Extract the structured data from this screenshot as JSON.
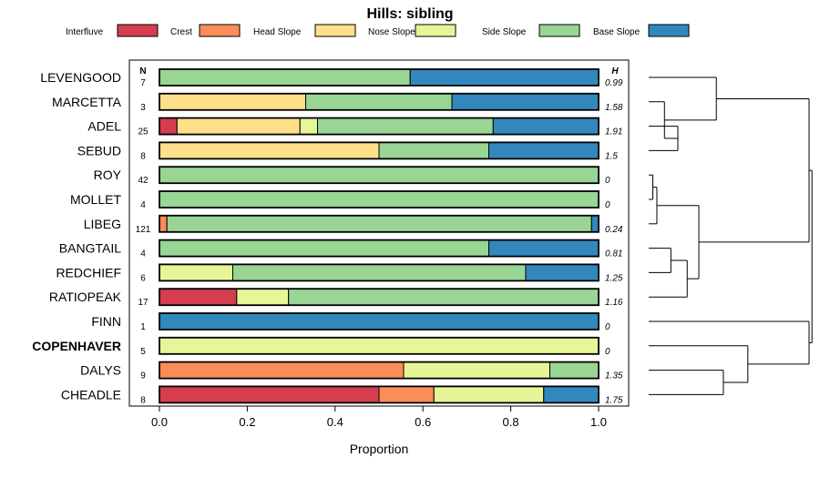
{
  "chart_data": {
    "type": "bar",
    "orientation": "horizontal",
    "stacked": true,
    "title": "Hills: sibling",
    "xlabel": "Proportion",
    "ylabel": "",
    "xlim": [
      0,
      1
    ],
    "x_ticks": [
      "0.0",
      "0.2",
      "0.4",
      "0.6",
      "0.8",
      "1.0"
    ],
    "n_header": "N",
    "h_header": "H",
    "legend_position": "top",
    "legend": [
      {
        "name": "Interfluve",
        "color": "#d53e4f"
      },
      {
        "name": "Crest",
        "color": "#fc8d59"
      },
      {
        "name": "Head Slope",
        "color": "#fee08b"
      },
      {
        "name": "Nose Slope",
        "color": "#e6f598"
      },
      {
        "name": "Side Slope",
        "color": "#99d594"
      },
      {
        "name": "Base Slope",
        "color": "#3288bd"
      }
    ],
    "highlighted_category": "COPENHAVER",
    "categories": [
      "LEVENGOOD",
      "MARCETTA",
      "ADEL",
      "SEBUD",
      "ROY",
      "MOLLET",
      "LIBEG",
      "BANGTAIL",
      "REDCHIEF",
      "RATIOPEAK",
      "FINN",
      "COPENHAVER",
      "DALYS",
      "CHEADLE"
    ],
    "n_values": [
      "7",
      "3",
      "25",
      "8",
      "42",
      "4",
      "121",
      "4",
      "6",
      "17",
      "1",
      "5",
      "9",
      "8"
    ],
    "h_values": [
      "0.99",
      "1.58",
      "1.91",
      "1.5",
      "0",
      "0",
      "0.24",
      "0.81",
      "1.25",
      "1.16",
      "0",
      "0",
      "1.35",
      "1.75"
    ],
    "series": [
      {
        "name": "Interfluve",
        "values": [
          0,
          0,
          0.04,
          0,
          0,
          0,
          0,
          0,
          0,
          0.176,
          0,
          0,
          0,
          0.5
        ]
      },
      {
        "name": "Crest",
        "values": [
          0,
          0,
          0,
          0,
          0,
          0,
          0.017,
          0,
          0,
          0,
          0,
          0,
          0.556,
          0.125
        ]
      },
      {
        "name": "Head Slope",
        "values": [
          0,
          0.333,
          0.28,
          0.5,
          0,
          0,
          0,
          0,
          0,
          0,
          0,
          0,
          0,
          0
        ]
      },
      {
        "name": "Nose Slope",
        "values": [
          0,
          0,
          0.04,
          0,
          0,
          0,
          0,
          0,
          0.167,
          0.118,
          0,
          1,
          0.333,
          0.25
        ]
      },
      {
        "name": "Side Slope",
        "values": [
          0.571,
          0.333,
          0.4,
          0.25,
          1,
          1,
          0.967,
          0.75,
          0.667,
          0.706,
          0,
          0,
          0.111,
          0
        ]
      },
      {
        "name": "Base Slope",
        "values": [
          0.429,
          0.333,
          0.24,
          0.25,
          0,
          0,
          0.017,
          0.25,
          0.167,
          0,
          1,
          0,
          0,
          0.125
        ]
      }
    ],
    "dendrogram": {
      "leaf_order": [
        "LEVENGOOD",
        "MARCETTA",
        "ADEL",
        "SEBUD",
        "ROY",
        "MOLLET",
        "LIBEG",
        "BANGTAIL",
        "REDCHIEF",
        "RATIOPEAK",
        "FINN",
        "COPENHAVER",
        "DALYS",
        "CHEADLE"
      ],
      "merges": [
        {
          "left": "ADEL",
          "right": "SEBUD",
          "height": 0.5
        },
        {
          "left": "MARCETTA",
          "right": "ADEL+SEBUD",
          "height": 0.27
        },
        {
          "left": "LEVENGOOD",
          "right": "MARCETTA+ADEL+SEBUD",
          "height": 1.16
        },
        {
          "left": "ROY",
          "right": "MOLLET",
          "height": 0.07
        },
        {
          "left": "ROY+MOLLET",
          "right": "LIBEG",
          "height": 0.14
        },
        {
          "left": "BANGTAIL",
          "right": "REDCHIEF",
          "height": 0.38
        },
        {
          "left": "BANGTAIL+REDCHIEF",
          "right": "RATIOPEAK",
          "height": 0.66
        },
        {
          "left": "ROY+MOLLET+LIBEG",
          "right": "BANGTAIL+REDCHIEF+RATIOPEAK",
          "height": 0.86
        },
        {
          "left": "LEVENGOOD+MARCETTA+ADEL+SEBUD",
          "right": "ROY..RATIOPEAK",
          "height": 2.75
        },
        {
          "left": "DALYS",
          "right": "CHEADLE",
          "height": 1.28
        },
        {
          "left": "COPENHAVER",
          "right": "DALYS+CHEADLE",
          "height": 1.7
        },
        {
          "left": "FINN",
          "right": "COPENHAVER+DALYS+CHEADLE",
          "height": 2.75
        },
        {
          "left": "LEVENGOOD..RATIOPEAK",
          "right": "FINN..CHEADLE",
          "height": 2.8
        }
      ]
    }
  }
}
